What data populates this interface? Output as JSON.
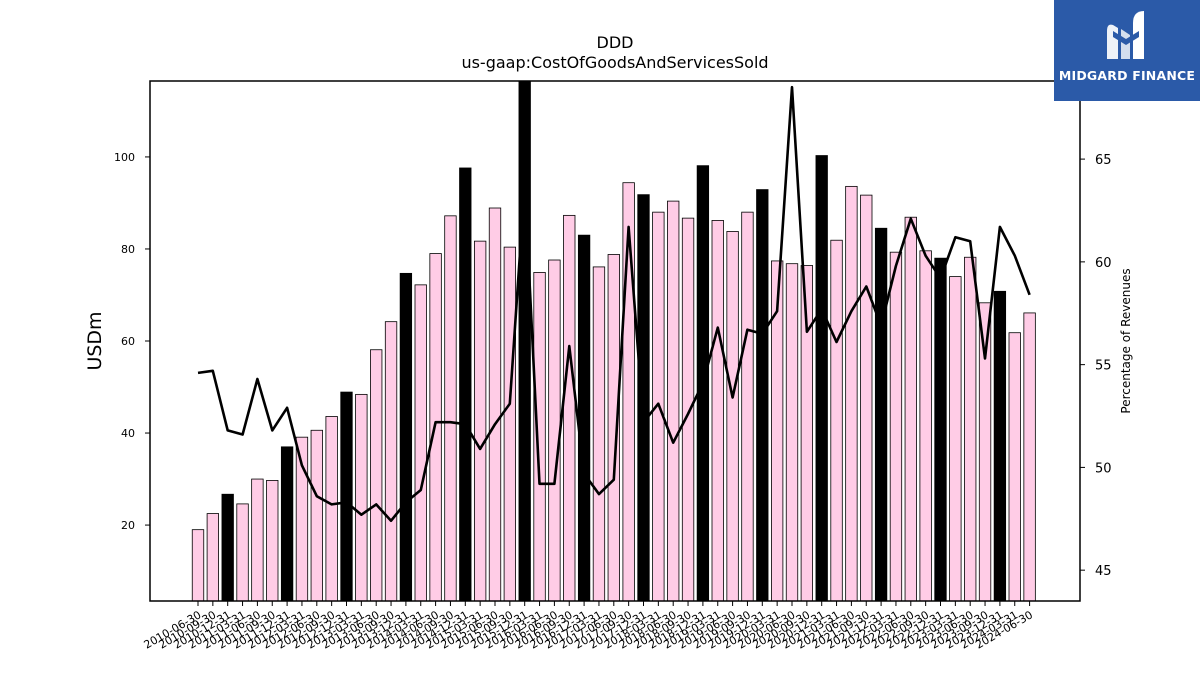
{
  "chart_data": {
    "type": "bar",
    "title": "DDD",
    "subtitle": "us-gaap:CostOfGoodsAndServicesSold",
    "ylabel": "USDm",
    "y2label": "Percentage of Revenues",
    "ylim": [
      3.5,
      116.5
    ],
    "y2lim": [
      43.5,
      68.8
    ],
    "yticks": [
      "20",
      "40",
      "60",
      "80",
      "100"
    ],
    "y2ticks": [
      "45",
      "50",
      "55",
      "60",
      "65"
    ],
    "bar_fill": "#ffcce6",
    "highlight_fill": "#000000",
    "line_color": "#000000",
    "categories": [
      "2010-06-30",
      "2010-09-30",
      "2010-12-31",
      "2011-03-31",
      "2011-06-30",
      "2011-09-30",
      "2011-12-31",
      "2012-03-31",
      "2012-06-30",
      "2012-09-30",
      "2012-12-31",
      "2013-03-31",
      "2013-06-30",
      "2013-09-30",
      "2013-12-31",
      "2014-03-31",
      "2014-06-30",
      "2014-09-30",
      "2014-12-31",
      "2015-03-31",
      "2015-06-30",
      "2015-09-30",
      "2015-12-31",
      "2016-03-31",
      "2016-06-30",
      "2016-09-30",
      "2016-12-31",
      "2017-03-31",
      "2017-06-30",
      "2017-09-30",
      "2017-12-31",
      "2018-03-31",
      "2018-06-30",
      "2018-09-30",
      "2018-12-31",
      "2019-03-31",
      "2019-06-30",
      "2019-09-30",
      "2019-12-31",
      "2020-03-31",
      "2020-06-30",
      "2020-09-30",
      "2020-12-31",
      "2021-03-31",
      "2021-06-30",
      "2021-09-30",
      "2021-12-31",
      "2022-03-31",
      "2022-06-30",
      "2022-09-30",
      "2022-12-31",
      "2023-03-31",
      "2023-06-30",
      "2023-09-30",
      "2023-12-31",
      "2024-03-31",
      "2024-06-30"
    ],
    "series": [
      {
        "kind": "bar",
        "axis": "left",
        "values": [
          19.0,
          22.5,
          26.7,
          24.6,
          30.0,
          29.7,
          37.0,
          39.1,
          40.6,
          43.6,
          48.9,
          48.4,
          58.1,
          64.2,
          74.7,
          72.2,
          79.0,
          87.2,
          97.6,
          81.7,
          88.9,
          80.4,
          117.8,
          74.9,
          77.6,
          87.3,
          83.0,
          76.1,
          78.8,
          94.4,
          91.8,
          88.0,
          90.4,
          86.7,
          98.1,
          86.2,
          83.8,
          88.0,
          92.9,
          77.4,
          76.8,
          76.4,
          100.3,
          81.9,
          93.6,
          91.7,
          84.5,
          79.3,
          86.9,
          79.6,
          78.0,
          74.0,
          78.2,
          68.3,
          70.8,
          61.8,
          66.1
        ],
        "highlight": [
          false,
          false,
          true,
          false,
          false,
          false,
          true,
          false,
          false,
          false,
          true,
          false,
          false,
          false,
          true,
          false,
          false,
          false,
          true,
          false,
          false,
          false,
          true,
          false,
          false,
          false,
          true,
          false,
          false,
          false,
          true,
          false,
          false,
          false,
          true,
          false,
          false,
          false,
          true,
          false,
          false,
          false,
          true,
          false,
          false,
          false,
          true,
          false,
          false,
          false,
          true,
          false,
          false,
          false,
          true,
          false,
          false
        ]
      },
      {
        "kind": "line",
        "axis": "right",
        "values": [
          54.6,
          54.7,
          51.8,
          51.6,
          54.3,
          51.8,
          52.9,
          50.1,
          48.6,
          48.2,
          48.3,
          47.7,
          48.2,
          47.4,
          48.3,
          48.9,
          52.2,
          52.2,
          52.1,
          50.9,
          52.1,
          53.1,
          63.8,
          49.2,
          49.2,
          55.9,
          49.7,
          48.7,
          49.4,
          61.7,
          52.2,
          53.1,
          51.2,
          52.6,
          54.1,
          56.8,
          53.4,
          56.7,
          56.5,
          57.6,
          68.5,
          56.6,
          57.7,
          56.1,
          57.6,
          58.8,
          56.9,
          59.8,
          62.1,
          60.3,
          59.2,
          61.2,
          61.0,
          55.3,
          61.7,
          60.3,
          58.4
        ]
      }
    ]
  },
  "logo": {
    "name": "MIDGARD FINANCE",
    "icon": "midgard-logo-icon"
  }
}
